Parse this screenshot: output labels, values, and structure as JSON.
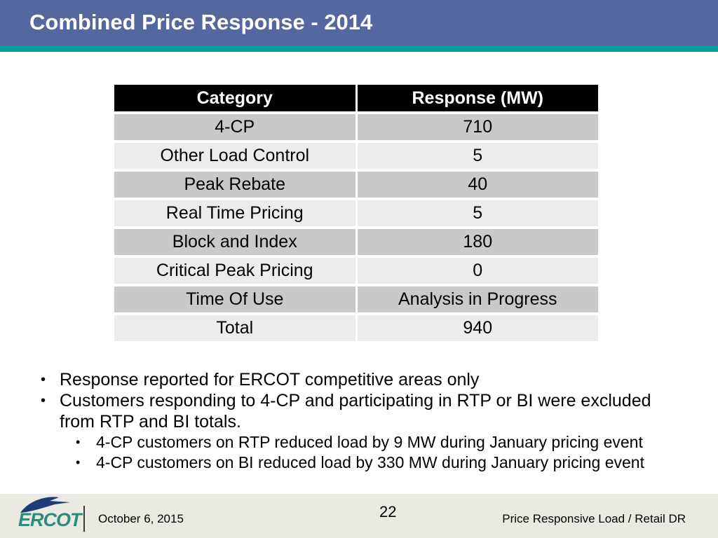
{
  "slide": {
    "title": "Combined Price Response - 2014"
  },
  "colors": {
    "header_bg": "#5468A0",
    "accent_teal": "#00A099",
    "table_header_bg": "#000000",
    "table_header_text": "#FFFFFF",
    "row_dark": "#C9C9C9",
    "row_light": "#ECECEC",
    "footer_bg": "#EAEAE2",
    "logo_teal": "#2E8C7E",
    "logo_navy": "#1E3C78"
  },
  "table": {
    "columns": [
      "Category",
      "Response (MW)"
    ],
    "rows": [
      [
        "4-CP",
        "710"
      ],
      [
        "Other Load Control",
        "5"
      ],
      [
        "Peak Rebate",
        "40"
      ],
      [
        "Real Time Pricing",
        "5"
      ],
      [
        "Block and Index",
        "180"
      ],
      [
        "Critical Peak Pricing",
        "0"
      ],
      [
        "Time Of Use",
        "Analysis in Progress"
      ],
      [
        "Total",
        "940"
      ]
    ]
  },
  "bullets": [
    {
      "level": 1,
      "text": "Response reported for ERCOT competitive areas only"
    },
    {
      "level": 1,
      "text": "Customers responding to 4-CP and participating in RTP or BI were excluded from RTP and BI totals."
    },
    {
      "level": 2,
      "text": "4-CP customers on RTP reduced load by 9 MW during January pricing event"
    },
    {
      "level": 2,
      "text": "4-CP customers on BI reduced load by 330 MW during January pricing event"
    }
  ],
  "footer": {
    "logo_text": "ERCOT",
    "date": "October 6, 2015",
    "page_number": "22",
    "right_text": "Price Responsive Load / Retail DR"
  }
}
